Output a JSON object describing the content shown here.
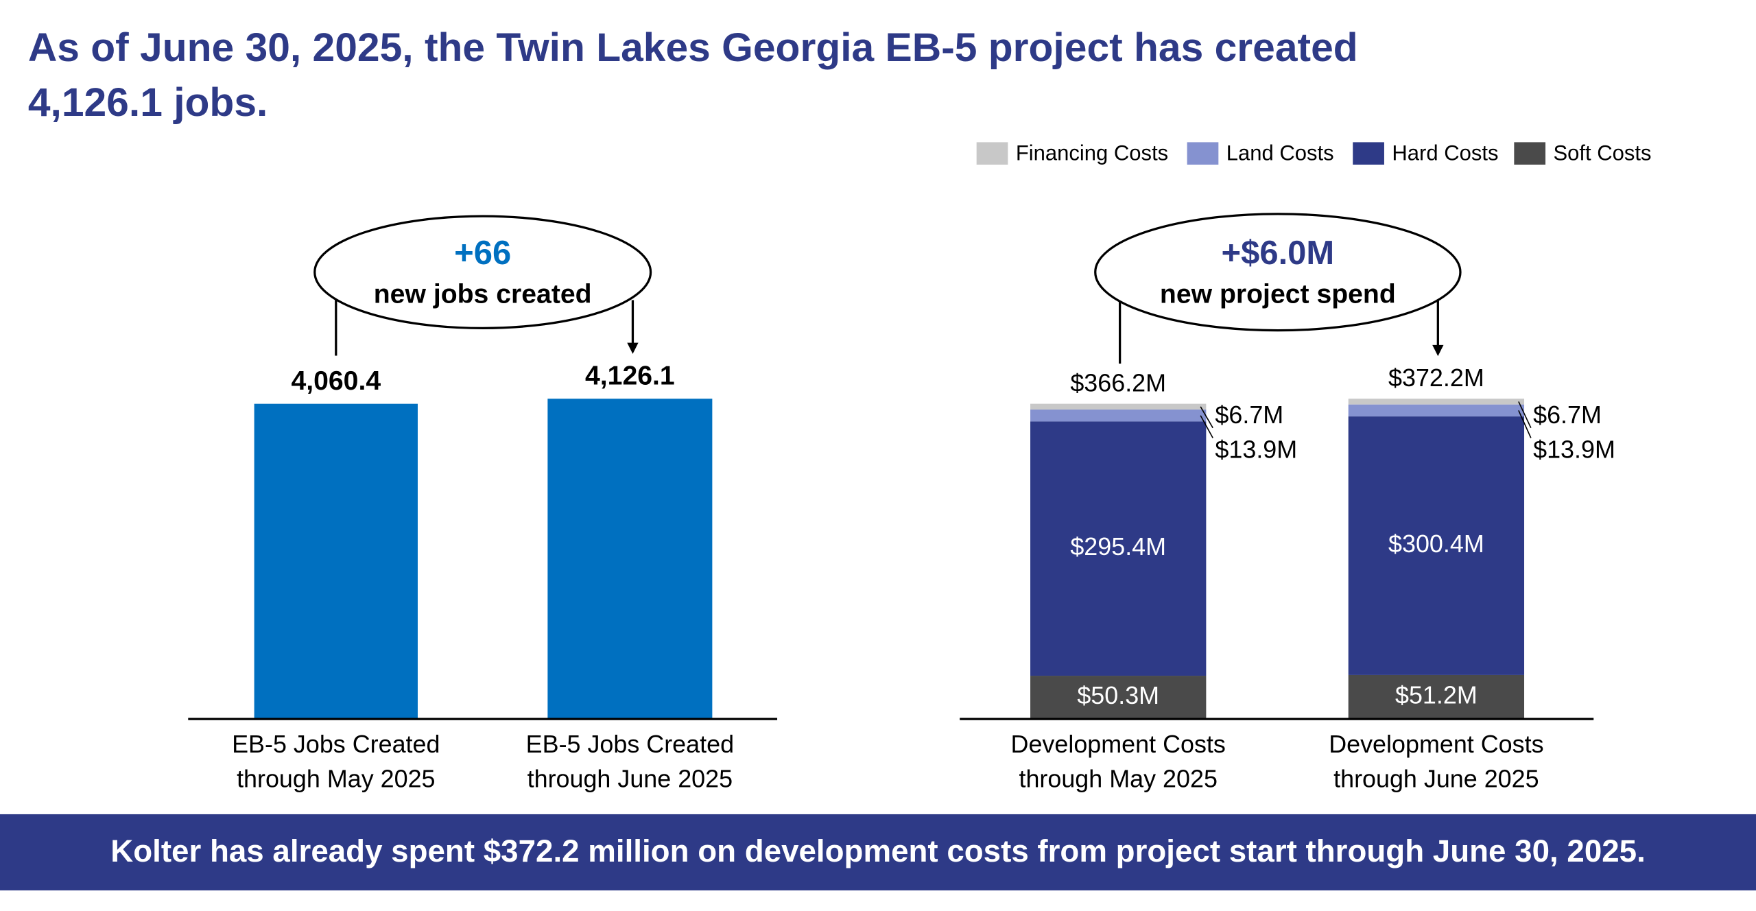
{
  "header": {
    "title_lines": [
      "As of June 30, 2025, the Twin Lakes Georgia EB-5 project has created",
      "4,126.1 jobs."
    ]
  },
  "chart_data": [
    {
      "type": "bar",
      "categories": [
        [
          "EB-5 Jobs Created",
          "through May 2025"
        ],
        [
          "EB-5 Jobs Created",
          "through June 2025"
        ]
      ],
      "values": [
        4060.4,
        4126.1
      ],
      "value_labels": [
        "4,060.4",
        "4,126.1"
      ],
      "color": "#0070c0",
      "annotation": {
        "headline": "+66",
        "text": "new jobs created",
        "color": "#0070c0"
      }
    },
    {
      "type": "stacked_bar",
      "categories": [
        [
          "Development Costs",
          "through May 2025"
        ],
        [
          "Development Costs",
          "through June 2025"
        ]
      ],
      "series": [
        {
          "name": "Soft Costs",
          "color": "#4a4a4a",
          "values": [
            50.3,
            51.2
          ],
          "value_labels": [
            "$50.3M",
            "$51.2M"
          ]
        },
        {
          "name": "Hard Costs",
          "color": "#2e3a87",
          "values": [
            295.4,
            300.4
          ],
          "value_labels": [
            "$295.4M",
            "$300.4M"
          ]
        },
        {
          "name": "Land Costs",
          "color": "#8592d0",
          "values": [
            13.9,
            13.9
          ],
          "value_labels": [
            "$13.9M",
            "$13.9M"
          ]
        },
        {
          "name": "Financing Costs",
          "color": "#c8c8c8",
          "values": [
            6.7,
            6.7
          ],
          "value_labels": [
            "$6.7M",
            "$6.7M"
          ]
        }
      ],
      "totals": {
        "values": [
          366.2,
          372.2
        ],
        "value_labels": [
          "$366.2M",
          "$372.2M"
        ]
      },
      "annotation": {
        "headline": "+$6.0M",
        "text": "new project spend",
        "color": "#2e3a87"
      }
    }
  ],
  "footer": {
    "text": "Kolter has already spent $372.2 million on development costs from project start through June 30, 2025."
  }
}
